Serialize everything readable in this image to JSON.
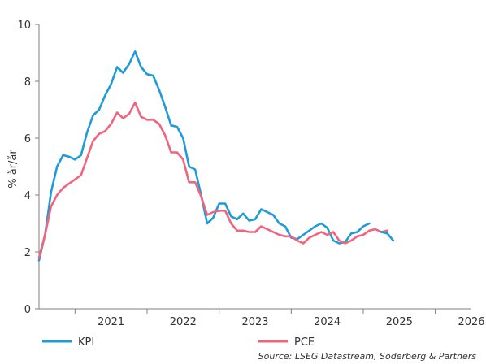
{
  "chart_data": {
    "type": "line",
    "ylabel": "% år/år",
    "ylim": [
      0,
      10
    ],
    "yticks": [
      "0",
      "2",
      "4",
      "6",
      "8",
      "10"
    ],
    "xlim": [
      "2020-07",
      "2026-07"
    ],
    "xtick_labels": [
      "2021",
      "2022",
      "2023",
      "2024",
      "2025",
      "2026"
    ],
    "grid": false,
    "legend": "bottom",
    "source": "Source: LSEG Datastream, Söderberg & Partners",
    "colors": {
      "KPI": "#1f9bd7",
      "PCE": "#f0647e"
    },
    "series": [
      {
        "name": "KPI",
        "points": [
          [
            "2020-07",
            1.7
          ],
          [
            "2020-08",
            2.6
          ],
          [
            "2020-09",
            4.1
          ],
          [
            "2020-10",
            5.0
          ],
          [
            "2020-11",
            5.4
          ],
          [
            "2020-12",
            5.35
          ],
          [
            "2021-01",
            5.25
          ],
          [
            "2021-02",
            5.4
          ],
          [
            "2021-03",
            6.2
          ],
          [
            "2021-04",
            6.8
          ],
          [
            "2021-05",
            7.0
          ],
          [
            "2021-06",
            7.5
          ],
          [
            "2021-07",
            7.9
          ],
          [
            "2021-08",
            8.5
          ],
          [
            "2021-09",
            8.3
          ],
          [
            "2021-10",
            8.6
          ],
          [
            "2021-11",
            9.05
          ],
          [
            "2021-12",
            8.5
          ],
          [
            "2022-01",
            8.25
          ],
          [
            "2022-02",
            8.2
          ],
          [
            "2022-03",
            7.7
          ],
          [
            "2022-04",
            7.1
          ],
          [
            "2022-05",
            6.45
          ],
          [
            "2022-06",
            6.4
          ],
          [
            "2022-07",
            6.0
          ],
          [
            "2022-08",
            5.0
          ],
          [
            "2022-09",
            4.9
          ],
          [
            "2022-10",
            4.0
          ],
          [
            "2022-11",
            3.0
          ],
          [
            "2022-12",
            3.2
          ],
          [
            "2023-01",
            3.7
          ],
          [
            "2023-02",
            3.7
          ],
          [
            "2023-03",
            3.25
          ],
          [
            "2023-04",
            3.15
          ],
          [
            "2023-05",
            3.35
          ],
          [
            "2023-06",
            3.1
          ],
          [
            "2023-07",
            3.15
          ],
          [
            "2023-08",
            3.5
          ],
          [
            "2023-09",
            3.4
          ],
          [
            "2023-10",
            3.3
          ],
          [
            "2023-11",
            3.0
          ],
          [
            "2023-12",
            2.9
          ],
          [
            "2024-01",
            2.5
          ],
          [
            "2024-02",
            2.45
          ],
          [
            "2024-03",
            2.6
          ],
          [
            "2024-04",
            2.75
          ],
          [
            "2024-05",
            2.9
          ],
          [
            "2024-06",
            3.0
          ],
          [
            "2024-07",
            2.85
          ],
          [
            "2024-08",
            2.4
          ],
          [
            "2024-09",
            2.3
          ],
          [
            "2024-10",
            2.35
          ],
          [
            "2024-11",
            2.65
          ],
          [
            "2024-12",
            2.7
          ],
          [
            "2025-01",
            2.9
          ],
          [
            "2025-02",
            3.0
          ]
        ]
      },
      {
        "name": "PCE",
        "points": [
          [
            "2020-07",
            1.8
          ],
          [
            "2020-08",
            2.6
          ],
          [
            "2020-09",
            3.6
          ],
          [
            "2020-10",
            4.0
          ],
          [
            "2020-11",
            4.25
          ],
          [
            "2020-12",
            4.4
          ],
          [
            "2021-01",
            4.55
          ],
          [
            "2021-02",
            4.7
          ],
          [
            "2021-03",
            5.3
          ],
          [
            "2021-04",
            5.9
          ],
          [
            "2021-05",
            6.15
          ],
          [
            "2021-06",
            6.25
          ],
          [
            "2021-07",
            6.5
          ],
          [
            "2021-08",
            6.9
          ],
          [
            "2021-09",
            6.7
          ],
          [
            "2021-10",
            6.85
          ],
          [
            "2021-11",
            7.25
          ],
          [
            "2021-12",
            6.75
          ],
          [
            "2022-01",
            6.65
          ],
          [
            "2022-02",
            6.65
          ],
          [
            "2022-03",
            6.5
          ],
          [
            "2022-04",
            6.1
          ],
          [
            "2022-05",
            5.5
          ],
          [
            "2022-06",
            5.5
          ],
          [
            "2022-07",
            5.25
          ],
          [
            "2022-08",
            4.45
          ],
          [
            "2022-09",
            4.45
          ],
          [
            "2022-10",
            3.95
          ],
          [
            "2022-11",
            3.3
          ],
          [
            "2022-12",
            3.4
          ],
          [
            "2023-01",
            3.45
          ],
          [
            "2023-02",
            3.45
          ],
          [
            "2023-03",
            3.0
          ],
          [
            "2023-04",
            2.75
          ],
          [
            "2023-05",
            2.75
          ],
          [
            "2023-06",
            2.7
          ],
          [
            "2023-07",
            2.7
          ],
          [
            "2023-08",
            2.9
          ],
          [
            "2023-09",
            2.8
          ],
          [
            "2023-10",
            2.7
          ],
          [
            "2023-11",
            2.6
          ],
          [
            "2023-12",
            2.55
          ],
          [
            "2024-01",
            2.55
          ],
          [
            "2024-02",
            2.4
          ],
          [
            "2024-03",
            2.3
          ],
          [
            "2024-04",
            2.5
          ],
          [
            "2024-05",
            2.6
          ],
          [
            "2024-06",
            2.7
          ],
          [
            "2024-07",
            2.6
          ],
          [
            "2024-08",
            2.7
          ],
          [
            "2024-09",
            2.4
          ],
          [
            "2024-10",
            2.3
          ],
          [
            "2024-11",
            2.4
          ],
          [
            "2024-12",
            2.55
          ],
          [
            "2025-01",
            2.6
          ],
          [
            "2025-02",
            2.75
          ],
          [
            "2025-03",
            2.8
          ],
          [
            "2025-04",
            2.7
          ],
          [
            "2025-05",
            2.75
          ]
        ]
      },
      {
        "name": "",
        "points": [
          [
            "2025-04",
            2.7
          ],
          [
            "2025-05",
            2.65
          ],
          [
            "2025-06",
            2.4
          ]
        ]
      }
    ]
  }
}
